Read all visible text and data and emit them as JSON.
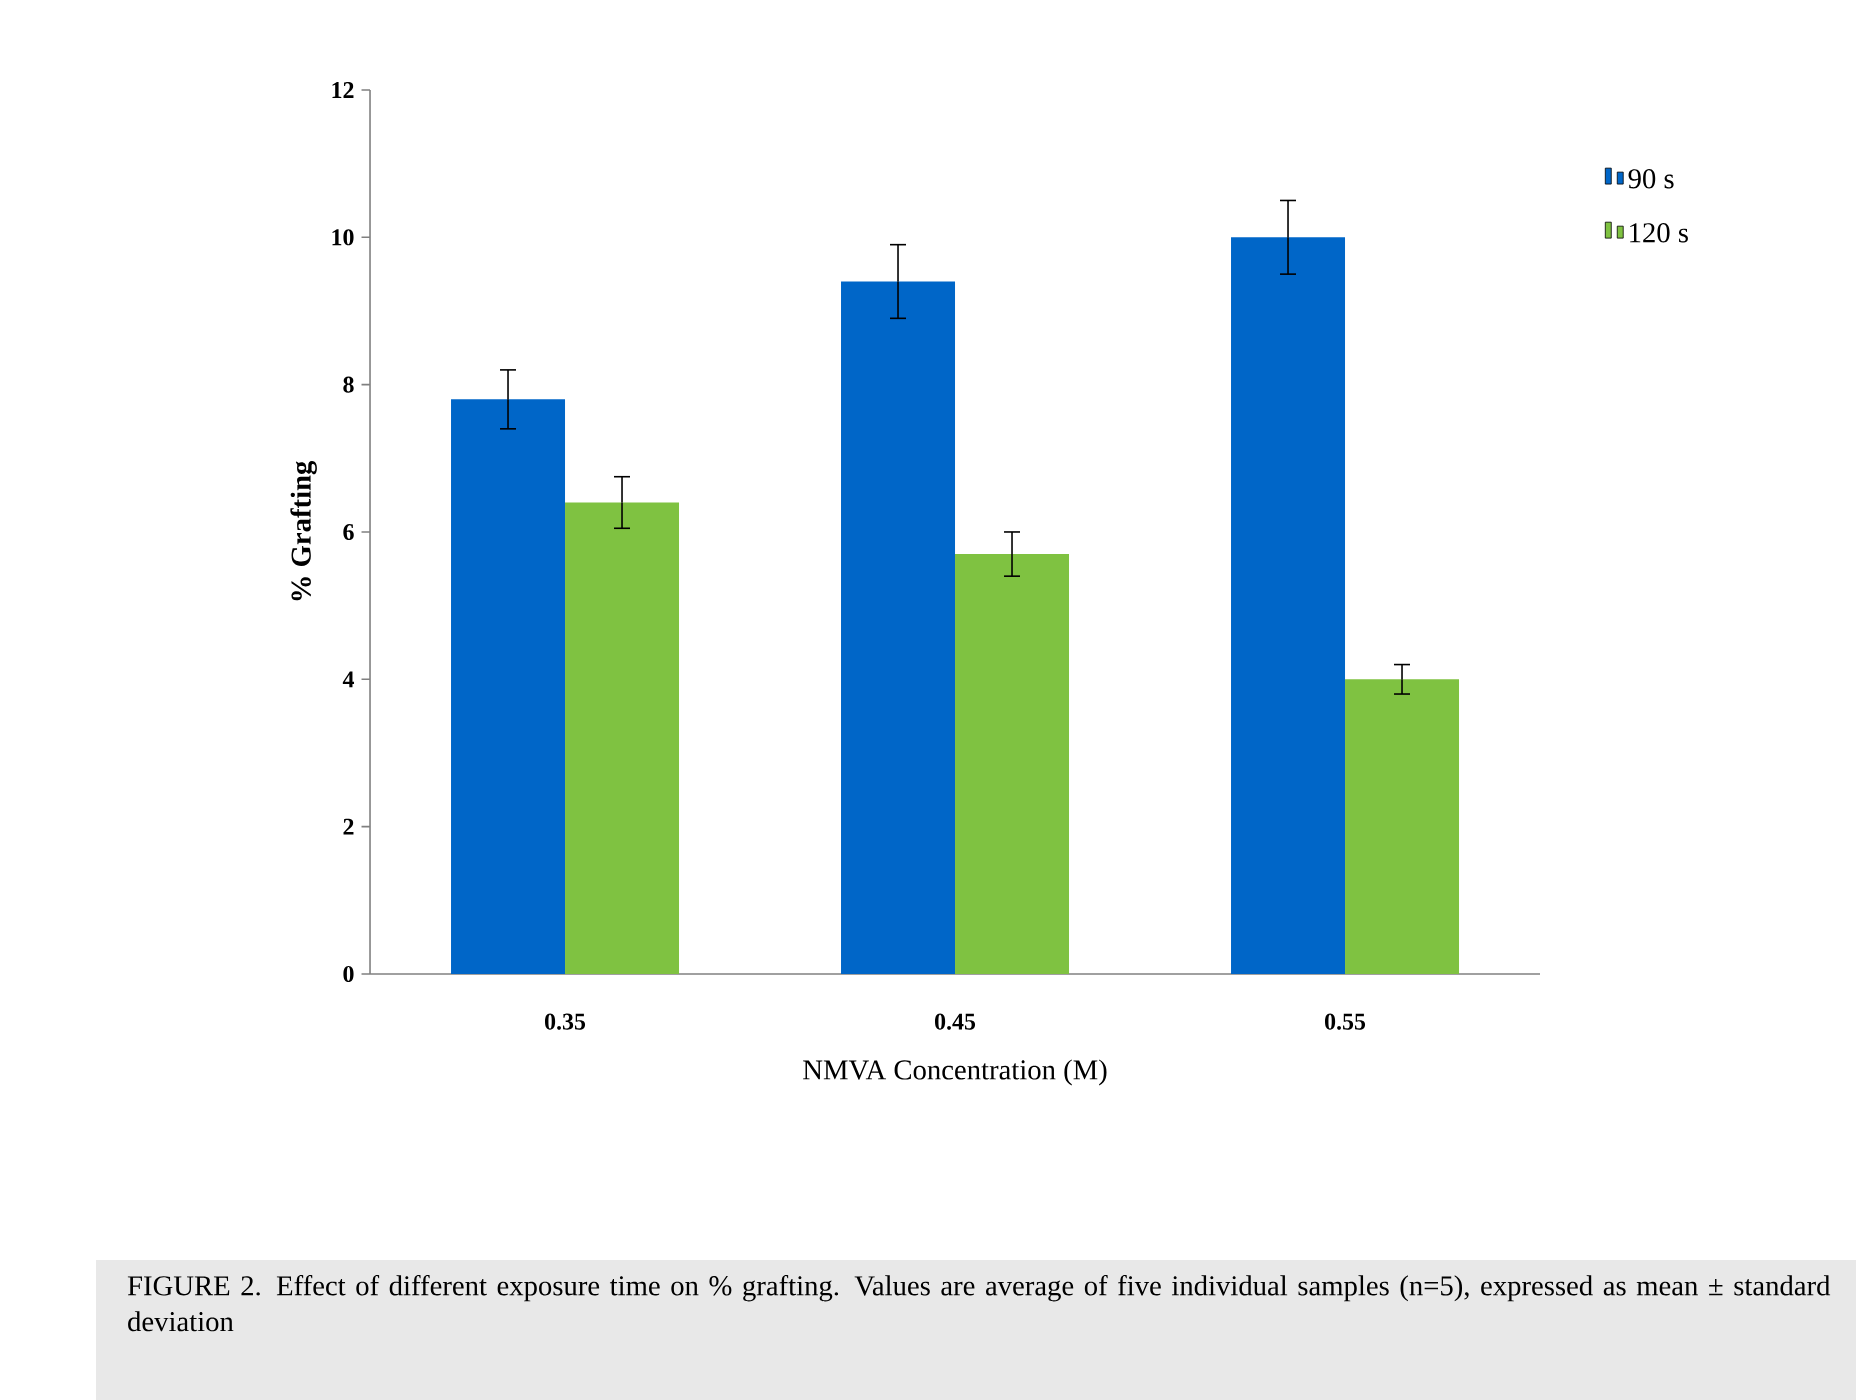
{
  "chart_data": {
    "type": "bar",
    "categories": [
      "0.35",
      "0.45",
      "0.55"
    ],
    "series": [
      {
        "name": "90 s",
        "color": "#0066c8",
        "values": [
          7.8,
          9.4,
          10.0
        ],
        "errors": [
          0.4,
          0.5,
          0.5
        ]
      },
      {
        "name": "120 s",
        "color": "#7fc241",
        "values": [
          6.4,
          5.7,
          4.0
        ],
        "errors": [
          0.35,
          0.3,
          0.2
        ]
      }
    ],
    "xlabel": "NMVA Concentration (M)",
    "ylabel": "% Grafting",
    "ylim": [
      0,
      12
    ],
    "yticks": [
      0,
      2,
      4,
      6,
      8,
      10,
      12
    ],
    "legend": "right",
    "annotations": [
      "FIGURE 2. Effect of different exposure time on % grafting. Values are average of five individual samples (n=5), expressed as mean ± standard deviation"
    ]
  }
}
